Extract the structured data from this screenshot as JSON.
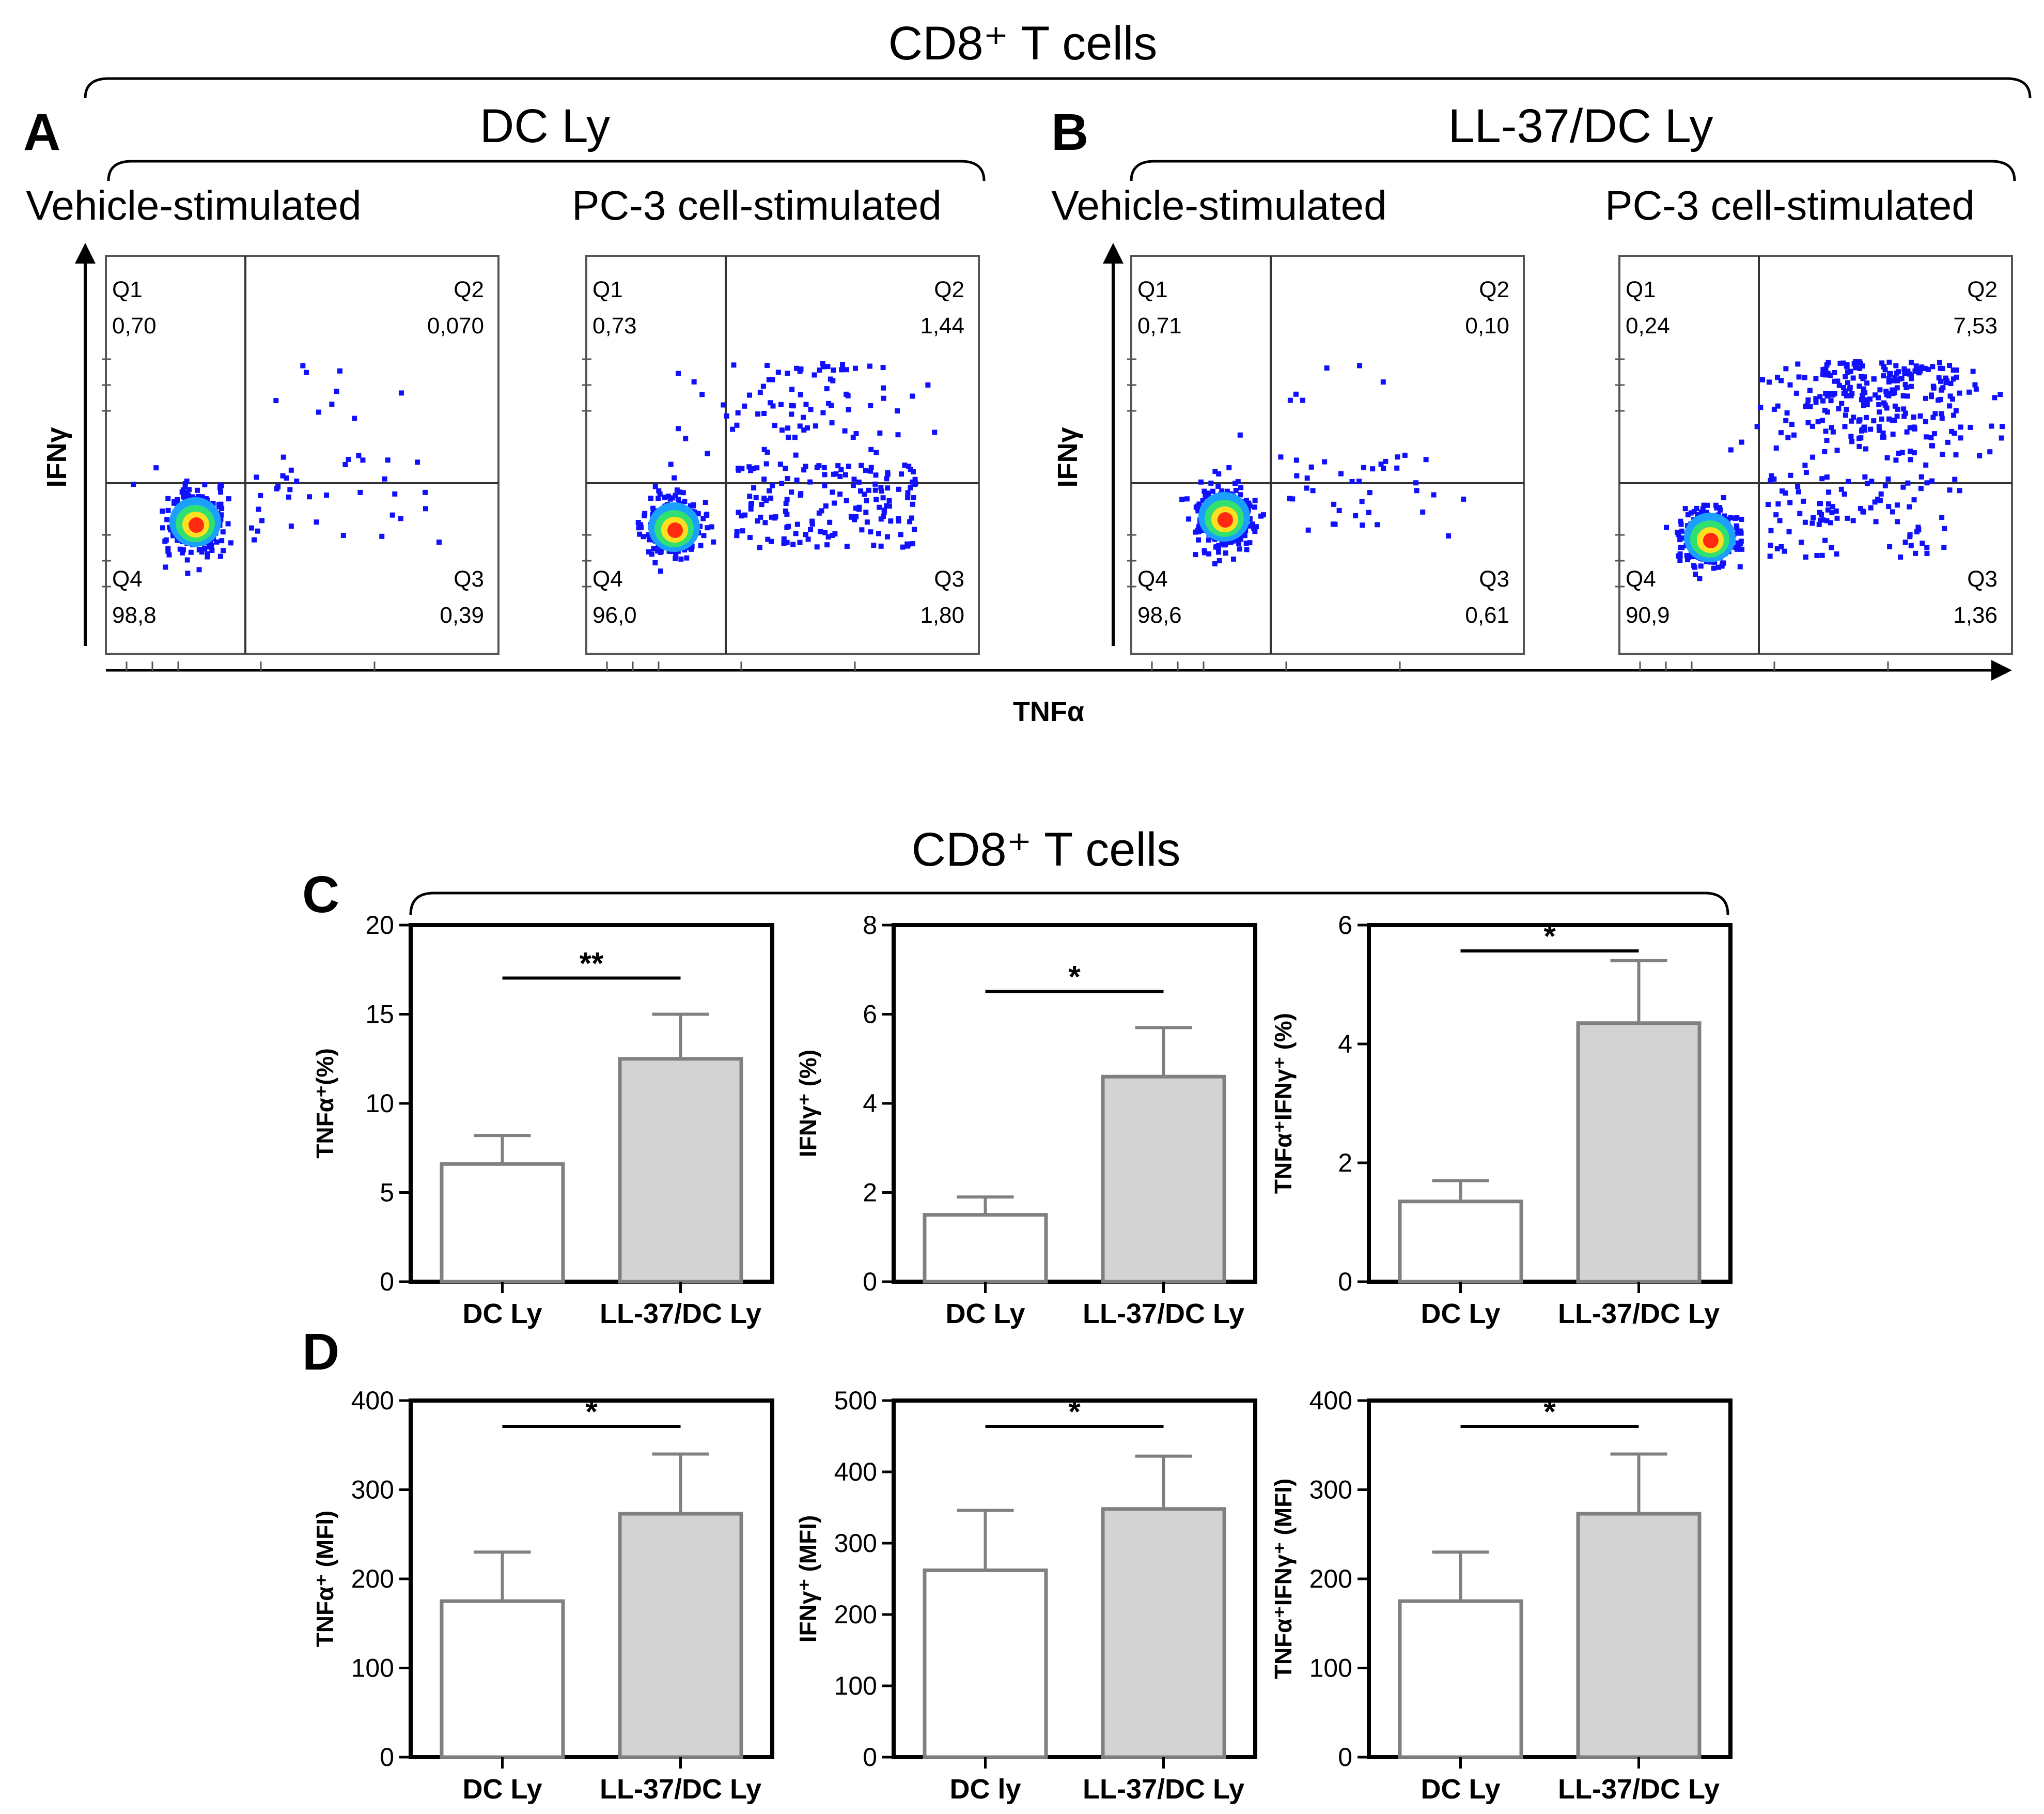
{
  "figure": {
    "top_header": "CD8⁺ T cells",
    "bottom_header": "CD8⁺ T cells",
    "group_a": {
      "letter": "A",
      "title": "DC Ly"
    },
    "group_b": {
      "letter": "B",
      "title": "LL-37/DC Ly"
    },
    "letter_c": "C",
    "letter_d": "D",
    "flow_x_label": "TNFα",
    "flow_y_label": "IFNγ"
  },
  "colors": {
    "scatter": "#1010ff",
    "bar_white": "#ffffff",
    "bar_gray": "#d3d3d3",
    "bar_edge": "#808080"
  },
  "chart_data": [
    {
      "type": "scatter",
      "panel": "A",
      "subtitle": "Vehicle-stimulated",
      "quadrants": {
        "Q1": "0,70",
        "Q2": "0,070",
        "Q3": "0,39",
        "Q4": "98,8"
      }
    },
    {
      "type": "scatter",
      "panel": "A",
      "subtitle": "PC-3 cell-stimulated",
      "quadrants": {
        "Q1": "0,73",
        "Q2": "1,44",
        "Q3": "1,80",
        "Q4": "96,0"
      }
    },
    {
      "type": "scatter",
      "panel": "B",
      "subtitle": "Vehicle-stimulated",
      "quadrants": {
        "Q1": "0,71",
        "Q2": "0,10",
        "Q3": "0,61",
        "Q4": "98,6"
      }
    },
    {
      "type": "scatter",
      "panel": "B",
      "subtitle": "PC-3 cell-stimulated",
      "quadrants": {
        "Q1": "0,24",
        "Q2": "7,53",
        "Q3": "1,36",
        "Q4": "90,9"
      }
    },
    {
      "type": "bar",
      "panel": "C",
      "ylabel": "TNFα⁺(%)",
      "categories": [
        "DC Ly",
        "LL-37/DC Ly"
      ],
      "values": [
        6.6,
        12.5
      ],
      "errors": [
        1.6,
        2.5
      ],
      "ylim": [
        0,
        20
      ],
      "yticks": [
        0,
        5,
        10,
        15,
        20
      ],
      "significance": "**"
    },
    {
      "type": "bar",
      "panel": "C",
      "ylabel": "IFNγ⁺ (%)",
      "categories": [
        "DC Ly",
        "LL-37/DC Ly"
      ],
      "values": [
        1.5,
        4.6
      ],
      "errors": [
        0.4,
        1.1
      ],
      "ylim": [
        0,
        8
      ],
      "yticks": [
        0,
        2,
        4,
        6,
        8
      ],
      "significance": "*"
    },
    {
      "type": "bar",
      "panel": "C",
      "ylabel": "TNFα⁺IFNγ⁺ (%)",
      "categories": [
        "DC Ly",
        "LL-37/DC Ly"
      ],
      "values": [
        1.35,
        4.35
      ],
      "errors": [
        0.35,
        1.05
      ],
      "ylim": [
        0,
        6
      ],
      "yticks": [
        0,
        2,
        4,
        6
      ],
      "significance": "*"
    },
    {
      "type": "bar",
      "panel": "D",
      "ylabel": "TNFα⁺ (MFI)",
      "categories": [
        "DC Ly",
        "LL-37/DC Ly"
      ],
      "values": [
        175,
        273
      ],
      "errors": [
        55,
        67
      ],
      "ylim": [
        0,
        400
      ],
      "yticks": [
        0,
        100,
        200,
        300,
        400
      ],
      "significance": "*"
    },
    {
      "type": "bar",
      "panel": "D",
      "ylabel": "IFNγ⁺ (MFI)",
      "categories": [
        "DC ly",
        "LL-37/DC Ly"
      ],
      "values": [
        262,
        348
      ],
      "errors": [
        84,
        74
      ],
      "ylim": [
        0,
        500
      ],
      "yticks": [
        0,
        100,
        200,
        300,
        400,
        500
      ],
      "significance": "*"
    },
    {
      "type": "bar",
      "panel": "D",
      "ylabel": "TNFα⁺IFNγ⁺ (MFI)",
      "categories": [
        "DC Ly",
        "LL-37/DC Ly"
      ],
      "values": [
        175,
        273
      ],
      "errors": [
        55,
        67
      ],
      "ylim": [
        0,
        400
      ],
      "yticks": [
        0,
        100,
        200,
        300,
        400
      ],
      "significance": "*"
    }
  ]
}
